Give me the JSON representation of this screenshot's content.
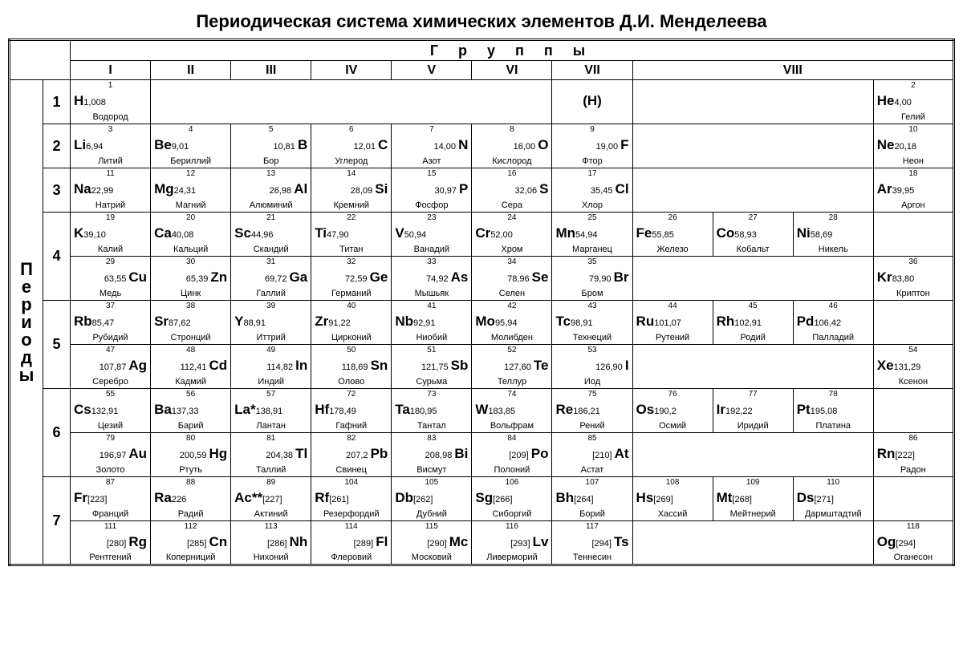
{
  "title": "Периодическая система химических элементов Д.И. Менделеева",
  "labels": {
    "groups": "Г р у п п ы",
    "periods_vertical": "П\nе\nр\nи\nо\nд\nы",
    "group_headers": [
      "I",
      "II",
      "III",
      "IV",
      "V",
      "VI",
      "VII",
      "VIII"
    ]
  },
  "rows": [
    {
      "period": "1",
      "sub": "a",
      "cells": [
        {
          "num": "1",
          "sym": "H",
          "mass": "1,008",
          "name": "Водород",
          "align": "left"
        },
        null,
        null,
        null,
        null,
        null,
        {
          "paren": "(H)"
        },
        null,
        null,
        null,
        {
          "num": "2",
          "sym": "He",
          "mass": "4,00",
          "name": "Гелий",
          "align": "left"
        }
      ]
    },
    {
      "period": "2",
      "sub": "a",
      "cells": [
        {
          "num": "3",
          "sym": "Li",
          "mass": "6,94",
          "name": "Литий",
          "align": "left"
        },
        {
          "num": "4",
          "sym": "Be",
          "mass": "9,01",
          "name": "Бериллий",
          "align": "left"
        },
        {
          "num": "5",
          "sym": "B",
          "mass": "10,81",
          "name": "Бор",
          "align": "right"
        },
        {
          "num": "6",
          "sym": "C",
          "mass": "12,01",
          "name": "Углерод",
          "align": "right"
        },
        {
          "num": "7",
          "sym": "N",
          "mass": "14,00",
          "name": "Азот",
          "align": "right"
        },
        {
          "num": "8",
          "sym": "O",
          "mass": "16,00",
          "name": "Кислород",
          "align": "right"
        },
        {
          "num": "9",
          "sym": "F",
          "mass": "19,00",
          "name": "Фтор",
          "align": "right"
        },
        null,
        null,
        null,
        {
          "num": "10",
          "sym": "Ne",
          "mass": "20,18",
          "name": "Неон",
          "align": "left"
        }
      ]
    },
    {
      "period": "3",
      "sub": "a",
      "cells": [
        {
          "num": "11",
          "sym": "Na",
          "mass": "22,99",
          "name": "Натрий",
          "align": "left"
        },
        {
          "num": "12",
          "sym": "Mg",
          "mass": "24,31",
          "name": "Магний",
          "align": "left"
        },
        {
          "num": "13",
          "sym": "Al",
          "mass": "26,98",
          "name": "Алюминий",
          "align": "right"
        },
        {
          "num": "14",
          "sym": "Si",
          "mass": "28,09",
          "name": "Кремний",
          "align": "right"
        },
        {
          "num": "15",
          "sym": "P",
          "mass": "30,97",
          "name": "Фосфор",
          "align": "right"
        },
        {
          "num": "16",
          "sym": "S",
          "mass": "32,06",
          "name": "Сера",
          "align": "right"
        },
        {
          "num": "17",
          "sym": "Cl",
          "mass": "35,45",
          "name": "Хлор",
          "align": "right"
        },
        null,
        null,
        null,
        {
          "num": "18",
          "sym": "Ar",
          "mass": "39,95",
          "name": "Аргон",
          "align": "left"
        }
      ]
    },
    {
      "period": "4",
      "sub": "a",
      "cells": [
        {
          "num": "19",
          "sym": "K",
          "mass": "39,10",
          "name": "Калий",
          "align": "left"
        },
        {
          "num": "20",
          "sym": "Ca",
          "mass": "40,08",
          "name": "Кальций",
          "align": "left"
        },
        {
          "num": "21",
          "sym": "Sc",
          "mass": "44,96",
          "name": "Скандий",
          "align": "left"
        },
        {
          "num": "22",
          "sym": "Ti",
          "mass": "47,90",
          "name": "Титан",
          "align": "left"
        },
        {
          "num": "23",
          "sym": "V",
          "mass": "50,94",
          "name": "Ванадий",
          "align": "left"
        },
        {
          "num": "24",
          "sym": "Cr",
          "mass": "52,00",
          "name": "Хром",
          "align": "left"
        },
        {
          "num": "25",
          "sym": "Mn",
          "mass": "54,94",
          "name": "Марганец",
          "align": "left"
        },
        {
          "num": "26",
          "sym": "Fe",
          "mass": "55,85",
          "name": "Железо",
          "align": "left"
        },
        {
          "num": "27",
          "sym": "Co",
          "mass": "58,93",
          "name": "Кобальт",
          "align": "left"
        },
        {
          "num": "28",
          "sym": "Ni",
          "mass": "58,69",
          "name": "Никель",
          "align": "left"
        },
        null
      ]
    },
    {
      "period": "4",
      "sub": "b",
      "cells": [
        {
          "num": "29",
          "sym": "Cu",
          "mass": "63,55",
          "name": "Медь",
          "align": "right"
        },
        {
          "num": "30",
          "sym": "Zn",
          "mass": "65,39",
          "name": "Цинк",
          "align": "right"
        },
        {
          "num": "31",
          "sym": "Ga",
          "mass": "69,72",
          "name": "Галлий",
          "align": "right"
        },
        {
          "num": "32",
          "sym": "Ge",
          "mass": "72,59",
          "name": "Германий",
          "align": "right"
        },
        {
          "num": "33",
          "sym": "As",
          "mass": "74,92",
          "name": "Мышьяк",
          "align": "right"
        },
        {
          "num": "34",
          "sym": "Se",
          "mass": "78,96",
          "name": "Селен",
          "align": "right"
        },
        {
          "num": "35",
          "sym": "Br",
          "mass": "79,90",
          "name": "Бром",
          "align": "right"
        },
        null,
        null,
        null,
        {
          "num": "36",
          "sym": "Kr",
          "mass": "83,80",
          "name": "Криптон",
          "align": "left"
        }
      ]
    },
    {
      "period": "5",
      "sub": "a",
      "cells": [
        {
          "num": "37",
          "sym": "Rb",
          "mass": "85,47",
          "name": "Рубидий",
          "align": "left"
        },
        {
          "num": "38",
          "sym": "Sr",
          "mass": "87,62",
          "name": "Стронций",
          "align": "left"
        },
        {
          "num": "39",
          "sym": "Y",
          "mass": "88,91",
          "name": "Иттрий",
          "align": "left"
        },
        {
          "num": "40",
          "sym": "Zr",
          "mass": "91,22",
          "name": "Цирконий",
          "align": "left"
        },
        {
          "num": "41",
          "sym": "Nb",
          "mass": "92,91",
          "name": "Ниобий",
          "align": "left"
        },
        {
          "num": "42",
          "sym": "Mo",
          "mass": "95,94",
          "name": "Молибден",
          "align": "left"
        },
        {
          "num": "43",
          "sym": "Tc",
          "mass": "98,91",
          "name": "Технеций",
          "align": "left"
        },
        {
          "num": "44",
          "sym": "Ru",
          "mass": "101,07",
          "name": "Рутений",
          "align": "left"
        },
        {
          "num": "45",
          "sym": "Rh",
          "mass": "102,91",
          "name": "Родий",
          "align": "left"
        },
        {
          "num": "46",
          "sym": "Pd",
          "mass": "106,42",
          "name": "Палладий",
          "align": "left"
        },
        null
      ]
    },
    {
      "period": "5",
      "sub": "b",
      "cells": [
        {
          "num": "47",
          "sym": "Ag",
          "mass": "107,87",
          "name": "Серебро",
          "align": "right"
        },
        {
          "num": "48",
          "sym": "Cd",
          "mass": "112,41",
          "name": "Кадмий",
          "align": "right"
        },
        {
          "num": "49",
          "sym": "In",
          "mass": "114,82",
          "name": "Индий",
          "align": "right"
        },
        {
          "num": "50",
          "sym": "Sn",
          "mass": "118,69",
          "name": "Олово",
          "align": "right"
        },
        {
          "num": "51",
          "sym": "Sb",
          "mass": "121,75",
          "name": "Сурьма",
          "align": "right"
        },
        {
          "num": "52",
          "sym": "Te",
          "mass": "127,60",
          "name": "Теллур",
          "align": "right"
        },
        {
          "num": "53",
          "sym": "I",
          "mass": "126,90",
          "name": "Иод",
          "align": "right"
        },
        null,
        null,
        null,
        {
          "num": "54",
          "sym": "Xe",
          "mass": "131,29",
          "name": "Ксенон",
          "align": "left"
        }
      ]
    },
    {
      "period": "6",
      "sub": "a",
      "cells": [
        {
          "num": "55",
          "sym": "Cs",
          "mass": "132,91",
          "name": "Цезий",
          "align": "left"
        },
        {
          "num": "56",
          "sym": "Ba",
          "mass": "137,33",
          "name": "Барий",
          "align": "left"
        },
        {
          "num": "57",
          "sym": "La*",
          "mass": "138,91",
          "name": "Лантан",
          "align": "left"
        },
        {
          "num": "72",
          "sym": "Hf",
          "mass": "178,49",
          "name": "Гафний",
          "align": "left"
        },
        {
          "num": "73",
          "sym": "Ta",
          "mass": "180,95",
          "name": "Тантал",
          "align": "left"
        },
        {
          "num": "74",
          "sym": "W",
          "mass": "183,85",
          "name": "Вольфрам",
          "align": "left"
        },
        {
          "num": "75",
          "sym": "Re",
          "mass": "186,21",
          "name": "Рений",
          "align": "left"
        },
        {
          "num": "76",
          "sym": "Os",
          "mass": "190,2",
          "name": "Осмий",
          "align": "left"
        },
        {
          "num": "77",
          "sym": "Ir",
          "mass": "192,22",
          "name": "Иридий",
          "align": "left"
        },
        {
          "num": "78",
          "sym": "Pt",
          "mass": "195,08",
          "name": "Платина",
          "align": "left"
        },
        null
      ]
    },
    {
      "period": "6",
      "sub": "b",
      "cells": [
        {
          "num": "79",
          "sym": "Au",
          "mass": "196,97",
          "name": "Золото",
          "align": "right"
        },
        {
          "num": "80",
          "sym": "Hg",
          "mass": "200,59",
          "name": "Ртуть",
          "align": "right"
        },
        {
          "num": "81",
          "sym": "Tl",
          "mass": "204,38",
          "name": "Таллий",
          "align": "right"
        },
        {
          "num": "82",
          "sym": "Pb",
          "mass": "207,2",
          "name": "Свинец",
          "align": "right"
        },
        {
          "num": "83",
          "sym": "Bi",
          "mass": "208,98",
          "name": "Висмут",
          "align": "right"
        },
        {
          "num": "84",
          "sym": "Po",
          "mass": "[209]",
          "name": "Полоний",
          "align": "right"
        },
        {
          "num": "85",
          "sym": "At",
          "mass": "[210]",
          "name": "Астат",
          "align": "right"
        },
        null,
        null,
        null,
        {
          "num": "86",
          "sym": "Rn",
          "mass": "[222]",
          "name": "Радон",
          "align": "left"
        }
      ]
    },
    {
      "period": "7",
      "sub": "a",
      "cells": [
        {
          "num": "87",
          "sym": "Fr",
          "mass": "[223]",
          "name": "Франций",
          "align": "left"
        },
        {
          "num": "88",
          "sym": "Ra",
          "mass": "226",
          "name": "Радий",
          "align": "left"
        },
        {
          "num": "89",
          "sym": "Ac**",
          "mass": "[227]",
          "name": "Актиний",
          "align": "left"
        },
        {
          "num": "104",
          "sym": "Rf",
          "mass": "[261]",
          "name": "Резерфордий",
          "align": "left"
        },
        {
          "num": "105",
          "sym": "Db",
          "mass": "[262]",
          "name": "Дубний",
          "align": "left"
        },
        {
          "num": "106",
          "sym": "Sg",
          "mass": "[266]",
          "name": "Сиборгий",
          "align": "left"
        },
        {
          "num": "107",
          "sym": "Bh",
          "mass": "[264]",
          "name": "Борий",
          "align": "left"
        },
        {
          "num": "108",
          "sym": "Hs",
          "mass": "[269]",
          "name": "Хассий",
          "align": "left"
        },
        {
          "num": "109",
          "sym": "Mt",
          "mass": "[268]",
          "name": "Мейтнерий",
          "align": "left"
        },
        {
          "num": "110",
          "sym": "Ds",
          "mass": "[271]",
          "name": "Дармштадтий",
          "align": "left"
        },
        null
      ]
    },
    {
      "period": "7",
      "sub": "b",
      "cells": [
        {
          "num": "111",
          "sym": "Rg",
          "mass": "[280]",
          "name": "Рентгений",
          "align": "right"
        },
        {
          "num": "112",
          "sym": "Cn",
          "mass": "[285]",
          "name": "Коперниций",
          "align": "right"
        },
        {
          "num": "113",
          "sym": "Nh",
          "mass": "[286]",
          "name": "Нихоний",
          "align": "right"
        },
        {
          "num": "114",
          "sym": "Fl",
          "mass": "[289]",
          "name": "Флеровий",
          "align": "right"
        },
        {
          "num": "115",
          "sym": "Mc",
          "mass": "[290]",
          "name": "Московий",
          "align": "right"
        },
        {
          "num": "116",
          "sym": "Lv",
          "mass": "[293]",
          "name": "Ливерморий",
          "align": "right"
        },
        {
          "num": "117",
          "sym": "Ts",
          "mass": "[294]",
          "name": "Теннесин",
          "align": "right"
        },
        null,
        null,
        null,
        {
          "num": "118",
          "sym": "Og",
          "mass": "[294]",
          "name": "Оганесон",
          "align": "left"
        }
      ]
    }
  ]
}
